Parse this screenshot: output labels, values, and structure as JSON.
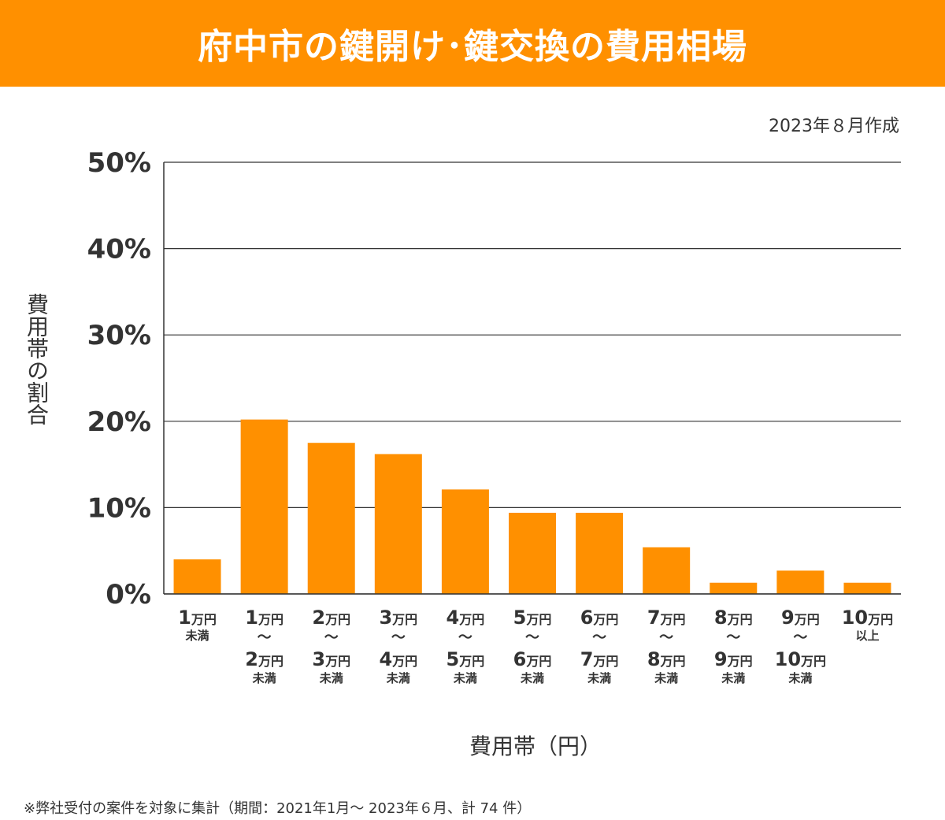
{
  "header": {
    "title": "府中市の鍵開け･鍵交換の費用相場",
    "created": "2023年８月作成"
  },
  "footnote": "※弊社受付の案件を対象に集計（期間：2021年1月～ 2023年６月、計 74 件）",
  "colors": {
    "accent": "#ff9000",
    "bar": "#ff9000",
    "grid": "#333333"
  },
  "chart_data": {
    "type": "bar",
    "ylabel": "費用帯の割合",
    "xlabel": "費用帯（円）",
    "ylim": [
      0,
      50
    ],
    "yticks": [
      {
        "value": 0,
        "label": "0%"
      },
      {
        "value": 10,
        "label": "10%"
      },
      {
        "value": 20,
        "label": "20%"
      },
      {
        "value": 30,
        "label": "30%"
      },
      {
        "value": 40,
        "label": "40%"
      },
      {
        "value": 50,
        "label": "50%"
      }
    ],
    "grid": true,
    "categories": [
      "1万円未満",
      "1万円～2万円未満",
      "2万円～3万円未満",
      "3万円～4万円未満",
      "4万円～5万円未満",
      "5万円～6万円未満",
      "6万円～7万円未満",
      "7万円～8万円未満",
      "8万円～9万円未満",
      "9万円～10万円未満",
      "10万円以上"
    ],
    "category_labels": [
      {
        "from_num": "1",
        "from_unit": "万円",
        "to_num": "",
        "to_unit": "",
        "suffix": "未満"
      },
      {
        "from_num": "1",
        "from_unit": "万円",
        "to_num": "2",
        "to_unit": "万円",
        "suffix": "未満"
      },
      {
        "from_num": "2",
        "from_unit": "万円",
        "to_num": "3",
        "to_unit": "万円",
        "suffix": "未満"
      },
      {
        "from_num": "3",
        "from_unit": "万円",
        "to_num": "4",
        "to_unit": "万円",
        "suffix": "未満"
      },
      {
        "from_num": "4",
        "from_unit": "万円",
        "to_num": "5",
        "to_unit": "万円",
        "suffix": "未満"
      },
      {
        "from_num": "5",
        "from_unit": "万円",
        "to_num": "6",
        "to_unit": "万円",
        "suffix": "未満"
      },
      {
        "from_num": "6",
        "from_unit": "万円",
        "to_num": "7",
        "to_unit": "万円",
        "suffix": "未満"
      },
      {
        "from_num": "7",
        "from_unit": "万円",
        "to_num": "8",
        "to_unit": "万円",
        "suffix": "未満"
      },
      {
        "from_num": "8",
        "from_unit": "万円",
        "to_num": "9",
        "to_unit": "万円",
        "suffix": "未満"
      },
      {
        "from_num": "9",
        "from_unit": "万円",
        "to_num": "10",
        "to_unit": "万円",
        "suffix": "未満"
      },
      {
        "from_num": "10",
        "from_unit": "万円",
        "to_num": "",
        "to_unit": "",
        "suffix": "以上"
      }
    ],
    "range_symbol": "～",
    "values": [
      4.0,
      20.2,
      17.5,
      16.2,
      12.1,
      9.4,
      9.4,
      5.4,
      1.3,
      2.7,
      1.3
    ]
  }
}
